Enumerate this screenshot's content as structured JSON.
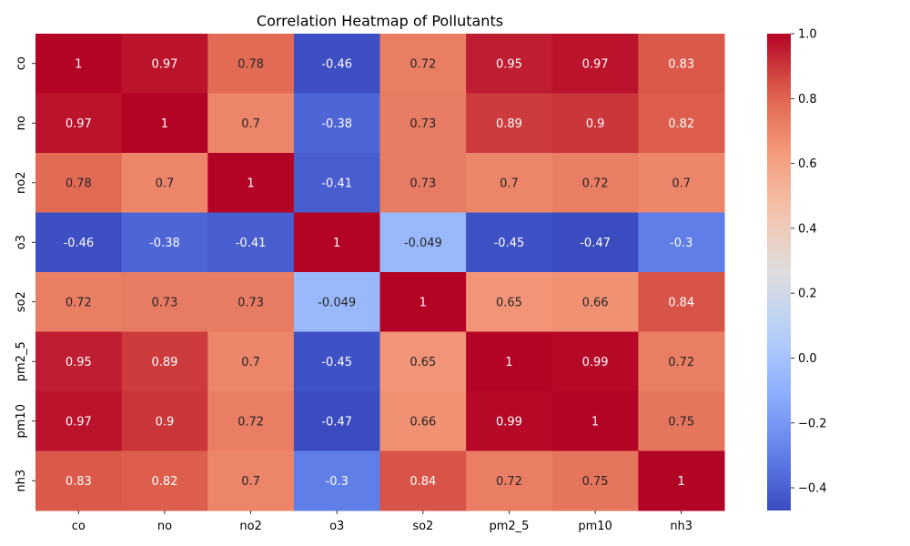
{
  "chart_data": {
    "type": "heatmap",
    "title": "Correlation Heatmap of Pollutants",
    "xlabel": "",
    "ylabel": "",
    "x_categories": [
      "co",
      "no",
      "no2",
      "o3",
      "so2",
      "pm2_5",
      "pm10",
      "nh3"
    ],
    "y_categories": [
      "co",
      "no",
      "no2",
      "o3",
      "so2",
      "pm2_5",
      "pm10",
      "nh3"
    ],
    "values": [
      [
        1,
        0.97,
        0.78,
        -0.46,
        0.72,
        0.95,
        0.97,
        0.83
      ],
      [
        0.97,
        1,
        0.7,
        -0.38,
        0.73,
        0.89,
        0.9,
        0.82
      ],
      [
        0.78,
        0.7,
        1,
        -0.41,
        0.73,
        0.7,
        0.72,
        0.7
      ],
      [
        -0.46,
        -0.38,
        -0.41,
        1,
        -0.049,
        -0.45,
        -0.47,
        -0.3
      ],
      [
        0.72,
        0.73,
        0.73,
        -0.049,
        1,
        0.65,
        0.66,
        0.84
      ],
      [
        0.95,
        0.89,
        0.7,
        -0.45,
        0.65,
        1,
        0.99,
        0.72
      ],
      [
        0.97,
        0.9,
        0.72,
        -0.47,
        0.66,
        0.99,
        1,
        0.75
      ],
      [
        0.83,
        0.82,
        0.7,
        -0.3,
        0.84,
        0.72,
        0.75,
        1
      ]
    ],
    "colormap": "coolwarm",
    "vmin": -0.47,
    "vmax": 1.0,
    "colorbar_ticks": [
      1.0,
      0.8,
      0.6,
      0.4,
      0.2,
      0.0,
      -0.2,
      -0.4
    ],
    "colorbar_tick_labels": [
      "1.0",
      "0.8",
      "0.6",
      "0.4",
      "0.2",
      "0.0",
      "−0.2",
      "−0.4"
    ],
    "annotations": true,
    "grid": false,
    "legend": "colorbar-right"
  }
}
